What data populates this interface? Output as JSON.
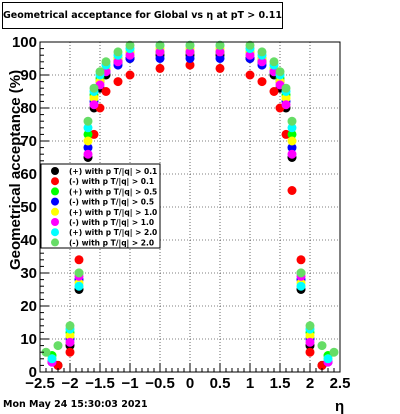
{
  "title": "Geometrical acceptance for Global vs  η at pT > 0.11",
  "footer": "Mon May 24 15:30:03 2021",
  "chart_data": {
    "type": "scatter",
    "xlabel": "η",
    "ylabel": "Geometrical acceptance (%)",
    "xlim": [
      -2.5,
      2.5
    ],
    "ylim": [
      0,
      100
    ],
    "x_ticks": [
      "−2.5",
      "−2",
      "−1.5",
      "−1",
      "−0.5",
      "0",
      "0.5",
      "1",
      "1.5",
      "2",
      "2.5"
    ],
    "y_ticks": [
      "0",
      "10",
      "20",
      "30",
      "40",
      "50",
      "60",
      "70",
      "80",
      "90",
      "100"
    ],
    "grid": true,
    "legend_position": "middle-left",
    "series": [
      {
        "name": "(+) with p T/|q| > 0.1",
        "color": "#000000",
        "x": [
          -2.2,
          -2.0,
          -1.85,
          -1.7,
          -1.6,
          -1.5,
          -1.4,
          -1.2,
          -1.0,
          -0.5,
          0,
          0.5,
          1.0,
          1.2,
          1.4,
          1.5,
          1.6,
          1.7,
          1.85,
          2.0,
          2.2
        ],
        "y": [
          2,
          8,
          25,
          65,
          80,
          86,
          90,
          94,
          95,
          96,
          96,
          96,
          95,
          94,
          90,
          86,
          80,
          65,
          25,
          8,
          2
        ]
      },
      {
        "name": "(-) with p T/|q| > 0.1",
        "color": "#ff0000",
        "x": [
          -2.2,
          -2.0,
          -1.85,
          -1.7,
          -1.6,
          -1.5,
          -1.4,
          -1.2,
          -1.0,
          -0.5,
          0,
          0.5,
          1.0,
          1.2,
          1.4,
          1.5,
          1.6,
          1.7,
          1.85,
          2.0,
          2.2
        ],
        "y": [
          2,
          6,
          34,
          55,
          72,
          80,
          85,
          88,
          90,
          92,
          93,
          92,
          90,
          88,
          85,
          80,
          72,
          55,
          34,
          6,
          2
        ]
      },
      {
        "name": "(+) with p T/|q| > 0.5",
        "color": "#00ff00",
        "x": [
          -2.3,
          -2.0,
          -1.85,
          -1.7,
          -1.6,
          -1.5,
          -1.4,
          -1.2,
          -1.0,
          -0.5,
          0,
          0.5,
          1.0,
          1.2,
          1.4,
          1.5,
          1.6,
          1.7,
          1.85,
          2.0,
          2.3
        ],
        "y": [
          5,
          12,
          30,
          72,
          84,
          89,
          92,
          95,
          97,
          97,
          97,
          97,
          97,
          95,
          92,
          89,
          84,
          72,
          30,
          12,
          5
        ]
      },
      {
        "name": "(-) with p T/|q| > 0.5",
        "color": "#0000ff",
        "x": [
          -2.3,
          -2.0,
          -1.85,
          -1.7,
          -1.6,
          -1.5,
          -1.4,
          -1.2,
          -1.0,
          -0.5,
          0,
          0.5,
          1.0,
          1.2,
          1.4,
          1.5,
          1.6,
          1.7,
          1.85,
          2.0,
          2.3
        ],
        "y": [
          3,
          10,
          28,
          68,
          82,
          88,
          91,
          93,
          95,
          95,
          95,
          95,
          95,
          93,
          91,
          88,
          82,
          68,
          28,
          10,
          3
        ]
      },
      {
        "name": "(+) with p T/|q| > 1.0",
        "color": "#ffff00",
        "x": [
          -2.3,
          -2.0,
          -1.85,
          -1.7,
          -1.6,
          -1.5,
          -1.4,
          -1.2,
          -1.0,
          -0.5,
          0,
          0.5,
          1.0,
          1.2,
          1.4,
          1.5,
          1.6,
          1.7,
          1.85,
          2.0,
          2.3
        ],
        "y": [
          4,
          11,
          27,
          70,
          83,
          88,
          92,
          95,
          97,
          98,
          98,
          98,
          97,
          95,
          92,
          88,
          83,
          70,
          27,
          11,
          4
        ]
      },
      {
        "name": "(-) with p T/|q| > 1.0",
        "color": "#ff00ff",
        "x": [
          -2.3,
          -2.0,
          -1.85,
          -1.7,
          -1.6,
          -1.5,
          -1.4,
          -1.2,
          -1.0,
          -0.5,
          0,
          0.5,
          1.0,
          1.2,
          1.4,
          1.5,
          1.6,
          1.7,
          1.85,
          2.0,
          2.3
        ],
        "y": [
          3,
          9,
          29,
          66,
          81,
          87,
          91,
          94,
          96,
          97,
          97,
          97,
          96,
          94,
          91,
          87,
          81,
          66,
          29,
          9,
          3
        ]
      },
      {
        "name": "(+) with p T/|q| > 2.0",
        "color": "#00ffff",
        "x": [
          -2.3,
          -2.0,
          -1.85,
          -1.7,
          -1.6,
          -1.5,
          -1.4,
          -1.2,
          -1.0,
          -0.5,
          0,
          0.5,
          1.0,
          1.2,
          1.4,
          1.5,
          1.6,
          1.7,
          1.85,
          2.0,
          2.3
        ],
        "y": [
          4,
          13,
          26,
          74,
          85,
          90,
          93,
          96,
          98,
          99,
          99,
          99,
          98,
          96,
          93,
          90,
          85,
          74,
          26,
          13,
          4
        ]
      },
      {
        "name": "(-) with p T/|q| > 2.0",
        "color": "#66dd66",
        "x": [
          -2.4,
          -2.2,
          -2.0,
          -1.85,
          -1.7,
          -1.6,
          -1.5,
          -1.4,
          -1.2,
          -1.0,
          -0.5,
          0,
          0.5,
          1.0,
          1.2,
          1.4,
          1.5,
          1.6,
          1.7,
          1.85,
          2.0,
          2.2,
          2.4
        ],
        "y": [
          6,
          8,
          14,
          30,
          76,
          86,
          91,
          94,
          97,
          99,
          99,
          99,
          99,
          99,
          97,
          94,
          91,
          86,
          76,
          30,
          14,
          8,
          6
        ]
      }
    ]
  }
}
